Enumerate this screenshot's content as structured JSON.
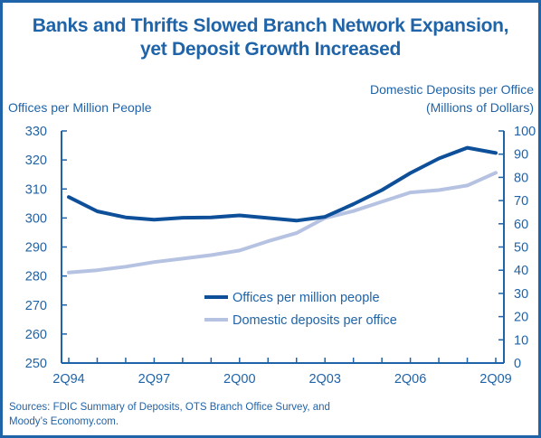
{
  "title_lines": [
    "Banks and Thrifts Slowed Branch Network Expansion,",
    "yet Deposit Growth Increased"
  ],
  "source_note": {
    "line1": "Sources: FDIC Summary of Deposits, OTS Branch Office Survey, and",
    "line2": "Moody’s Economy.com."
  },
  "colors": {
    "accent": "#1f63a8",
    "offices_series": "#0d4f99",
    "deposits_series": "#b6c2e2",
    "background": "#ffffff"
  },
  "chart_data": {
    "type": "line",
    "x": [
      "2Q94",
      "2Q95",
      "2Q96",
      "2Q97",
      "2Q98",
      "2Q99",
      "2Q00",
      "2Q01",
      "2Q02",
      "2Q03",
      "2Q04",
      "2Q05",
      "2Q06",
      "2Q07",
      "2Q08",
      "2Q09"
    ],
    "x_tick_labels": [
      "2Q94",
      "2Q97",
      "2Q00",
      "2Q03",
      "2Q06",
      "2Q09"
    ],
    "y_left": {
      "label_line1": "Offices per Million People",
      "ylim": [
        250,
        330
      ],
      "ticks": [
        "250",
        "260",
        "270",
        "280",
        "290",
        "300",
        "310",
        "320",
        "330"
      ]
    },
    "y_right": {
      "label_line1": "Domestic Deposits per Office",
      "label_line2": "(Millions of Dollars)",
      "ylim": [
        0,
        100
      ],
      "ticks": [
        "0",
        "10",
        "20",
        "30",
        "40",
        "50",
        "60",
        "70",
        "80",
        "90",
        "100"
      ]
    },
    "series": [
      {
        "name": "Offices per million people",
        "axis": "left",
        "values": [
          307.2,
          302.3,
          300.2,
          299.4,
          300.1,
          300.2,
          300.9,
          300.0,
          299.1,
          300.4,
          304.8,
          309.6,
          315.5,
          320.5,
          324.2,
          322.4
        ]
      },
      {
        "name": "Domestic deposits per office",
        "axis": "right",
        "values": [
          39,
          40,
          41.5,
          43.5,
          45,
          46.5,
          48.5,
          52.5,
          56,
          62.5,
          65.5,
          69.5,
          73.5,
          74.5,
          76.5,
          82
        ]
      }
    ],
    "legend_position": "center",
    "grid": false
  }
}
